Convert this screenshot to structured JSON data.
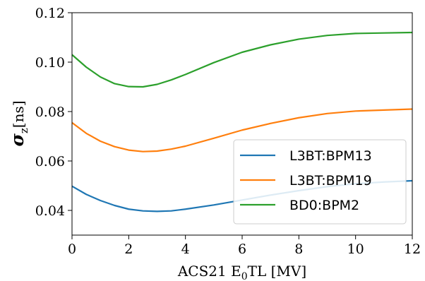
{
  "chart_data": {
    "type": "line",
    "xlabel": "ACS21 E",
    "xlabel_sub": "0",
    "xlabel_suffix": "TL [MV]",
    "ylabel": "σ",
    "ylabel_sub": "z",
    "ylabel_suffix": "[ns]",
    "xlim": [
      0,
      12
    ],
    "ylim": [
      0.03,
      0.12
    ],
    "xticks": [
      0,
      2,
      4,
      6,
      8,
      10,
      12
    ],
    "xtick_labels": [
      "0",
      "2",
      "4",
      "6",
      "8",
      "10",
      "12"
    ],
    "yticks": [
      0.04,
      0.06,
      0.08,
      0.1,
      0.12
    ],
    "ytick_labels": [
      "0.04",
      "0.06",
      "0.08",
      "0.10",
      "0.12"
    ],
    "grid": false,
    "legend_position": "lower-right",
    "x": [
      0,
      0.5,
      1,
      1.5,
      2,
      2.5,
      3,
      3.5,
      4,
      5,
      6,
      7,
      8,
      9,
      10,
      11,
      12
    ],
    "series": [
      {
        "name": "L3BT:BPM13",
        "color": "#1f77b4",
        "values": [
          0.0498,
          0.0465,
          0.044,
          0.042,
          0.0405,
          0.0398,
          0.0396,
          0.0398,
          0.0405,
          0.0422,
          0.0442,
          0.0462,
          0.048,
          0.0496,
          0.0508,
          0.0515,
          0.052
        ]
      },
      {
        "name": "L3BT:BPM19",
        "color": "#ff7f0e",
        "values": [
          0.0755,
          0.0712,
          0.068,
          0.0658,
          0.0644,
          0.0638,
          0.064,
          0.0648,
          0.066,
          0.0692,
          0.0725,
          0.0752,
          0.0775,
          0.0792,
          0.0802,
          0.0806,
          0.081
        ]
      },
      {
        "name": "BD0:BPM2",
        "color": "#2ca02c",
        "values": [
          0.103,
          0.098,
          0.094,
          0.0913,
          0.0901,
          0.09,
          0.091,
          0.0928,
          0.095,
          0.0998,
          0.104,
          0.107,
          0.1093,
          0.1108,
          0.1116,
          0.1118,
          0.112
        ]
      }
    ]
  }
}
